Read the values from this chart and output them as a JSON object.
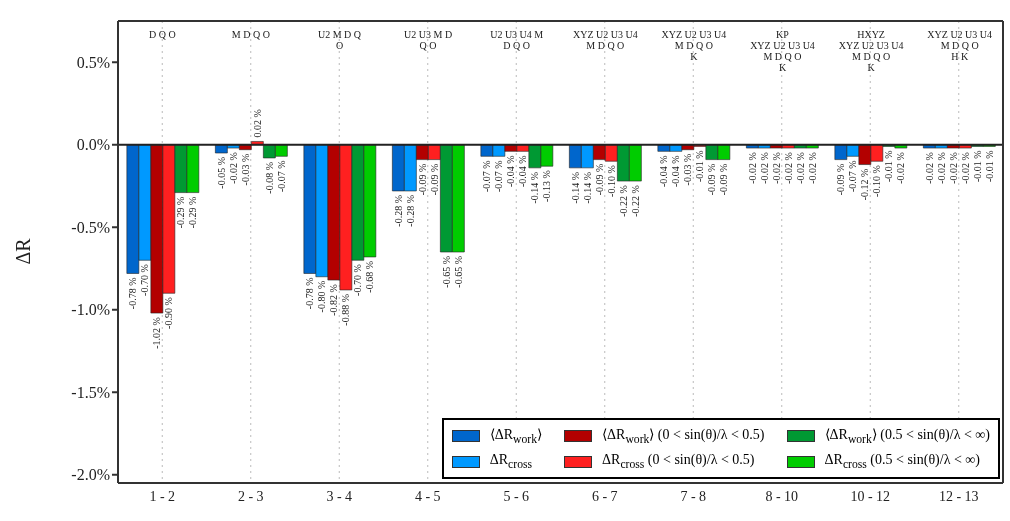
{
  "chart_data": {
    "type": "bar",
    "ylabel": "ΔR",
    "categories": [
      "1 - 2",
      "2 - 3",
      "3 - 4",
      "4 - 5",
      "5 - 6",
      "6 - 7",
      "7 - 8",
      "8 - 10",
      "10 - 12",
      "12 - 13"
    ],
    "series": [
      {
        "name": "⟨ΔR$_{work}$⟩",
        "color": "#0066cc",
        "values": [
          -0.78,
          -0.05,
          -0.78,
          -0.28,
          -0.07,
          -0.14,
          -0.04,
          -0.02,
          -0.09,
          -0.02
        ],
        "value_labels": [
          "-0.78 %",
          "-0.05 %",
          "-0.78 %",
          "-0.28 %",
          "-0.07 %",
          "-0.14 %",
          "-0.04 %",
          "-0.02 %",
          "-0.09 %",
          "-0.02 %"
        ]
      },
      {
        "name": "ΔR$_{cross}$",
        "color": "#0099ff",
        "values": [
          -0.7,
          -0.02,
          -0.8,
          -0.28,
          -0.07,
          -0.14,
          -0.04,
          -0.02,
          -0.07,
          -0.02
        ],
        "value_labels": [
          "-0.70 %",
          "-0.02 %",
          "-0.80 %",
          "-0.28 %",
          "-0.07 %",
          "-0.14 %",
          "-0.04 %",
          "-0.02 %",
          "-0.07 %",
          "-0.02 %"
        ]
      },
      {
        "name": "⟨ΔR$_{work}$⟩ (0 < sin(θ)/λ < 0.5)",
        "color": "#b30000",
        "values": [
          -1.02,
          -0.03,
          -0.82,
          -0.09,
          -0.04,
          -0.09,
          -0.03,
          -0.02,
          -0.12,
          -0.02
        ],
        "value_labels": [
          "-1.02 %",
          "-0.03 %",
          "-0.82 %",
          "-0.09 %",
          "-0.04 %",
          "-0.09 %",
          "-0.03 %",
          "-0.02 %",
          "-0.12 %",
          "-0.02 %"
        ]
      },
      {
        "name": "ΔR$_{cross}$ (0 < sin(θ)/λ < 0.5)",
        "color": "#ff2020",
        "values": [
          -0.9,
          0.02,
          -0.88,
          -0.09,
          -0.04,
          -0.1,
          -0.01,
          -0.02,
          -0.1,
          -0.02
        ],
        "value_labels": [
          "-0.90 %",
          "0.02 %",
          "-0.88 %",
          "-0.09 %",
          "-0.04 %",
          "-0.10 %",
          "-0.01 %",
          "-0.02 %",
          "-0.10 %",
          "-0.02 %"
        ]
      },
      {
        "name": "⟨ΔR$_{work}$⟩ (0.5 < sin(θ)/λ < ∞)",
        "color": "#009933",
        "values": [
          -0.29,
          -0.08,
          -0.7,
          -0.65,
          -0.14,
          -0.22,
          -0.09,
          -0.02,
          -0.01,
          -0.01
        ],
        "value_labels": [
          "-0.29 %",
          "-0.08 %",
          "-0.70 %",
          "-0.65 %",
          "-0.14 %",
          "-0.22 %",
          "-0.09 %",
          "-0.02 %",
          "-0.01 %",
          "-0.01 %"
        ]
      },
      {
        "name": "ΔR$_{cross}$ (0.5 < sin(θ)/λ < ∞)",
        "color": "#00cc00",
        "values": [
          -0.29,
          -0.07,
          -0.68,
          -0.65,
          -0.13,
          -0.22,
          -0.09,
          -0.02,
          -0.02,
          -0.01
        ],
        "value_labels": [
          "-0.29 %",
          "-0.07 %",
          "-0.68 %",
          "-0.65 %",
          "-0.13 %",
          "-0.22 %",
          "-0.09 %",
          "-0.02 %",
          "-0.02 %",
          "-0.01 %"
        ]
      }
    ],
    "ylim": [
      -2.05,
      0.75
    ],
    "yticks": [
      {
        "value": -2.0,
        "label": "-2.0%"
      },
      {
        "value": -1.5,
        "label": "-1.5%"
      },
      {
        "value": -1.0,
        "label": "-1.0%"
      },
      {
        "value": -0.5,
        "label": "-0.5%"
      },
      {
        "value": 0.0,
        "label": "0.0%"
      },
      {
        "value": 0.5,
        "label": "0.5%"
      }
    ],
    "grid": "x",
    "legend": "bottom right",
    "ref_lines": [
      {
        "axis": "y",
        "value": 0
      }
    ],
    "annotations": [
      "D Q O",
      "M D Q O",
      "U2 M D Q\nO",
      "U2 U3 M D\nQ O",
      "U2 U3 U4 M\nD Q O",
      "XYZ U2 U3 U4\nM D Q O",
      "XYZ U2 U3 U4\nM D Q O\nK",
      "KP\nXYZ U2 U3 U4\nM D Q O\nK",
      "HXYZ\nXYZ U2 U3 U4\nM D Q O\nK",
      "XYZ U2 U3 U4\nM D Q O\nH K"
    ]
  }
}
